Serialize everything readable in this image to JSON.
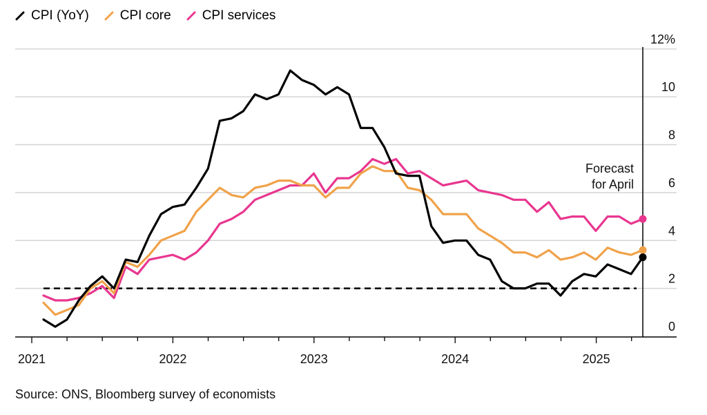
{
  "chart_data": {
    "type": "line",
    "title": "",
    "xlabel": "",
    "ylabel": "",
    "ylim": [
      0,
      12
    ],
    "y_ticks": [
      "0",
      "2",
      "4",
      "6",
      "8",
      "10",
      "12%"
    ],
    "y_tick_values": [
      0,
      2,
      4,
      6,
      8,
      10,
      12
    ],
    "x_tick_labels": [
      "2021",
      "2022",
      "2023",
      "2024",
      "2025"
    ],
    "x_start": "2021-01",
    "x_end": "2025-04",
    "grid": true,
    "legend_position": "top-left",
    "reference_line": {
      "value": 2,
      "style": "dashed",
      "color": "#000000"
    },
    "annotation": {
      "lines": [
        "Forecast",
        "for April"
      ],
      "at": "2025-04"
    },
    "series": [
      {
        "name": "CPI (YoY)",
        "color": "#000000",
        "values": [
          0.7,
          0.4,
          0.7,
          1.5,
          2.1,
          2.5,
          2.0,
          3.2,
          3.1,
          4.2,
          5.1,
          5.4,
          5.5,
          6.2,
          7.0,
          9.0,
          9.1,
          9.4,
          10.1,
          9.9,
          10.1,
          11.1,
          10.7,
          10.5,
          10.1,
          10.4,
          10.1,
          8.7,
          8.7,
          7.9,
          6.8,
          6.7,
          6.7,
          4.6,
          3.9,
          4.0,
          4.0,
          3.4,
          3.2,
          2.3,
          2.0,
          2.0,
          2.2,
          2.2,
          1.7,
          2.3,
          2.6,
          2.5,
          3.0,
          2.8,
          2.6,
          3.3
        ]
      },
      {
        "name": "CPI core",
        "color": "#f0a24a",
        "values": [
          1.4,
          0.9,
          1.1,
          1.3,
          2.0,
          2.3,
          1.8,
          3.1,
          2.9,
          3.4,
          4.0,
          4.2,
          4.4,
          5.2,
          5.7,
          6.2,
          5.9,
          5.8,
          6.2,
          6.3,
          6.5,
          6.5,
          6.3,
          6.3,
          5.8,
          6.2,
          6.2,
          6.8,
          7.1,
          6.9,
          6.9,
          6.2,
          6.1,
          5.7,
          5.1,
          5.1,
          5.1,
          4.5,
          4.2,
          3.9,
          3.5,
          3.5,
          3.3,
          3.6,
          3.2,
          3.3,
          3.5,
          3.2,
          3.7,
          3.5,
          3.4,
          3.6
        ]
      },
      {
        "name": "CPI services",
        "color": "#e8368f",
        "values": [
          1.7,
          1.5,
          1.5,
          1.6,
          1.8,
          2.1,
          1.6,
          2.9,
          2.6,
          3.2,
          3.3,
          3.4,
          3.2,
          3.5,
          4.0,
          4.7,
          4.9,
          5.2,
          5.7,
          5.9,
          6.1,
          6.3,
          6.3,
          6.8,
          6.0,
          6.6,
          6.6,
          6.9,
          7.4,
          7.2,
          7.4,
          6.8,
          6.9,
          6.6,
          6.3,
          6.4,
          6.5,
          6.1,
          6.0,
          5.9,
          5.7,
          5.7,
          5.2,
          5.6,
          4.9,
          5.0,
          5.0,
          4.4,
          5.0,
          5.0,
          4.7,
          4.9
        ]
      }
    ]
  },
  "source": "Source: ONS, Bloomberg survey of economists"
}
